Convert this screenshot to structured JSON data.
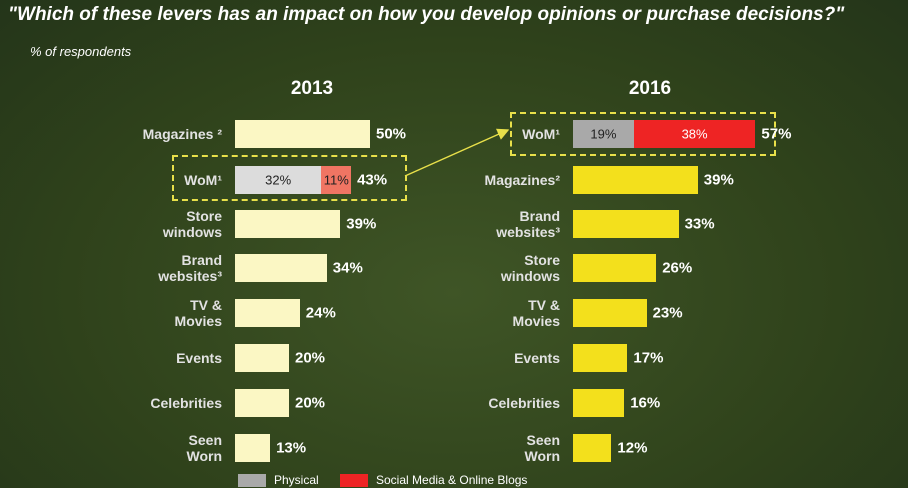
{
  "title": "\"Which of these levers has an impact on how you develop opinions or purchase decisions?\"",
  "subtitle": "% of respondents",
  "chart_data": [
    {
      "type": "bar",
      "title": "2013",
      "color": "#fbf7c4",
      "categories": [
        "Magazines ²",
        "WoM¹",
        "Store\nwindows",
        "Brand\nwebsites³",
        "TV &\nMovies",
        "Events",
        "Celebrities",
        "Seen\nWorn"
      ],
      "values": [
        50,
        43,
        39,
        34,
        24,
        20,
        20,
        13
      ],
      "value_labels": [
        "50%",
        "43%",
        "39%",
        "34%",
        "24%",
        "20%",
        "20%",
        "13%"
      ],
      "series": [
        {
          "name": "Physical",
          "color": "#dcdcdc",
          "values": [
            null,
            32,
            null,
            null,
            null,
            null,
            null,
            null
          ],
          "value_labels": [
            null,
            "32%",
            null,
            null,
            null,
            null,
            null,
            null
          ]
        },
        {
          "name": "Social Media & Online Blogs",
          "color": "#f07563",
          "values": [
            null,
            11,
            null,
            null,
            null,
            null,
            null,
            null
          ],
          "value_labels": [
            null,
            "11%",
            null,
            null,
            null,
            null,
            null,
            null
          ]
        }
      ]
    },
    {
      "type": "bar",
      "title": "2016",
      "color": "#f3e01c",
      "categories": [
        "WoM¹",
        "Magazines²",
        "Brand\nwebsites³",
        "Store\nwindows",
        "TV &\nMovies",
        "Events",
        "Celebrities",
        "Seen\nWorn"
      ],
      "values": [
        57,
        39,
        33,
        26,
        23,
        17,
        16,
        12
      ],
      "value_labels": [
        "57%",
        "39%",
        "33%",
        "26%",
        "23%",
        "17%",
        "16%",
        "12%"
      ],
      "series": [
        {
          "name": "Physical",
          "color": "#a9a9a9",
          "values": [
            19,
            null,
            null,
            null,
            null,
            null,
            null,
            null
          ],
          "value_labels": [
            "19%",
            null,
            null,
            null,
            null,
            null,
            null,
            null
          ]
        },
        {
          "name": "Social Media & Online Blogs",
          "color": "#ee2424",
          "values": [
            38,
            null,
            null,
            null,
            null,
            null,
            null,
            null
          ],
          "value_labels": [
            "38%",
            null,
            null,
            null,
            null,
            null,
            null,
            null
          ]
        }
      ]
    }
  ]
}
